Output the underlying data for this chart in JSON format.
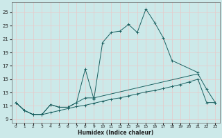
{
  "title": "",
  "xlabel": "Humidex (Indice chaleur)",
  "bg_color": "#cce9e9",
  "grid_color": "#e8c8c8",
  "line_color": "#1a6060",
  "xlim": [
    -0.5,
    23.5
  ],
  "ylim": [
    8.5,
    26.5
  ],
  "xticks": [
    0,
    1,
    2,
    3,
    4,
    5,
    6,
    7,
    8,
    9,
    10,
    11,
    12,
    13,
    14,
    15,
    16,
    17,
    18,
    19,
    20,
    21,
    22,
    23
  ],
  "yticks": [
    9,
    11,
    13,
    15,
    17,
    19,
    21,
    23,
    25
  ],
  "line1_x": [
    0,
    1,
    2,
    3,
    4,
    5,
    6,
    7,
    8,
    9,
    10,
    11,
    12,
    13,
    14,
    15,
    16,
    17,
    18,
    21
  ],
  "line1_y": [
    11.5,
    10.3,
    9.7,
    9.7,
    11.2,
    10.8,
    10.8,
    11.5,
    16.5,
    12.0,
    20.5,
    22.0,
    22.2,
    23.2,
    22.0,
    25.5,
    23.5,
    21.2,
    17.8,
    16.0
  ],
  "line2_x": [
    0,
    1,
    2,
    3,
    4,
    5,
    6,
    7,
    8,
    9,
    21,
    22,
    23
  ],
  "line2_y": [
    11.5,
    10.3,
    9.7,
    9.7,
    11.2,
    10.8,
    10.8,
    11.5,
    12.2,
    12.2,
    15.8,
    13.5,
    11.5
  ],
  "line3_x": [
    0,
    1,
    2,
    3,
    4,
    5,
    6,
    7,
    8,
    9,
    10,
    11,
    12,
    13,
    14,
    15,
    16,
    17,
    18,
    19,
    20,
    21,
    22,
    23
  ],
  "line3_y": [
    11.5,
    10.3,
    9.7,
    9.7,
    10.0,
    10.3,
    10.6,
    10.9,
    11.1,
    11.4,
    11.7,
    12.0,
    12.2,
    12.5,
    12.8,
    13.1,
    13.3,
    13.6,
    13.9,
    14.2,
    14.6,
    15.0,
    11.5,
    11.5
  ]
}
